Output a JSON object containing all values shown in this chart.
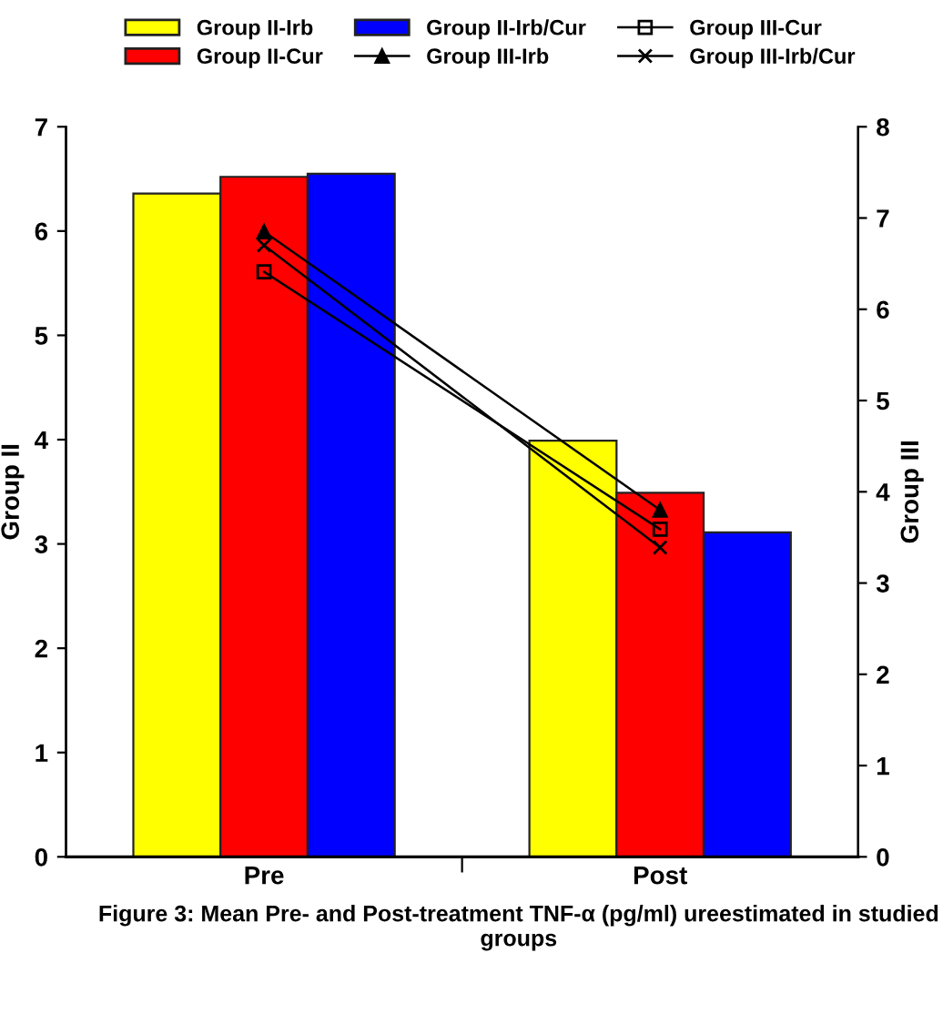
{
  "chart_data": {
    "type": "bar",
    "categories": [
      "Pre",
      "Post"
    ],
    "series": [
      {
        "name": "Group II-Irb",
        "color": "#ffff00",
        "values": [
          6.36,
          3.99
        ]
      },
      {
        "name": "Group II-Cur",
        "color": "#ff0000",
        "values": [
          6.52,
          3.49
        ]
      },
      {
        "name": "Group II-Irb/Cur",
        "color": "#0000ff",
        "values": [
          6.55,
          3.11
        ]
      },
      {
        "name": "Group III-Irb",
        "type": "line",
        "axis": "y2",
        "color": "#000000",
        "marker": "triangle",
        "values": [
          6.85,
          3.8
        ]
      },
      {
        "name": "Group III-Cur",
        "type": "line",
        "axis": "y2",
        "color": "#000000",
        "marker": "square",
        "values": [
          6.41,
          3.59
        ]
      },
      {
        "name": "Group III-Irb/Cur",
        "type": "line",
        "axis": "y2",
        "color": "#000000",
        "marker": "cross",
        "values": [
          6.7,
          3.39
        ]
      }
    ],
    "ylabel": "Group II",
    "y2label": "Group III",
    "ylim": [
      0,
      7
    ],
    "yticks": [
      0,
      1,
      2,
      3,
      4,
      5,
      6,
      7
    ],
    "y2lim": [
      0,
      8
    ],
    "y2ticks": [
      0,
      1,
      2,
      3,
      4,
      5,
      6,
      7,
      8
    ],
    "grid": false,
    "legend": "top",
    "annotations": [
      "Figure 3: Mean Pre- and Post-treatment TNF-α (pg/ml) ureestimated in studied groups"
    ]
  }
}
